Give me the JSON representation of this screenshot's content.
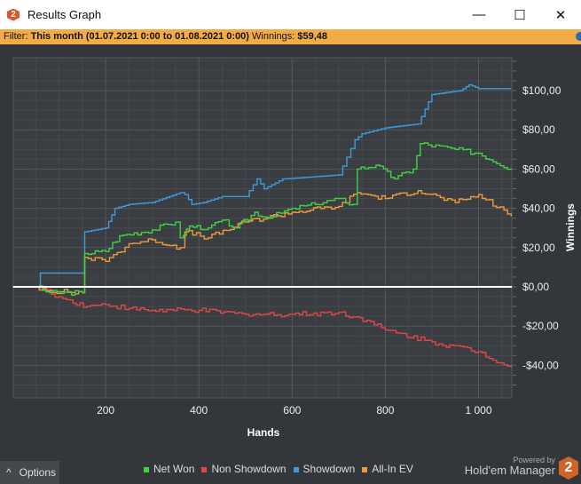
{
  "window": {
    "title": "Results Graph",
    "logo": "2",
    "minimize": "—",
    "maximize": "☐",
    "close": "✕"
  },
  "filter": {
    "label": "Filter:",
    "value": "This month (01.07.2021 0:00 to 01.08.2021 0:00)",
    "winnings_label": "Winnings:",
    "winnings_value": "$59,48"
  },
  "footer": {
    "options_label": "Options",
    "options_icon": "^",
    "powered_by": "Powered by",
    "brand": "Hold'em Manager",
    "brand_logo": "2"
  },
  "chart_data": {
    "type": "line",
    "xlabel": "Hands",
    "ylabel": "Winnings",
    "xlim": [
      0,
      1070
    ],
    "ylim": [
      -55,
      117
    ],
    "xticks": [
      200,
      400,
      600,
      800,
      1000
    ],
    "xtick_labels": [
      "200",
      "400",
      "600",
      "800",
      "1 000"
    ],
    "yticks": [
      100,
      80,
      60,
      40,
      20,
      0,
      -20,
      -40
    ],
    "ytick_labels": [
      "$100,00",
      "$80,00",
      "$60,00",
      "$40,00",
      "$20,00",
      "$0,00",
      "-$20,00",
      "-$40,00"
    ],
    "grid": true,
    "legend": "bottom",
    "series": [
      {
        "name": "Net Won",
        "color": "#3fd43f",
        "x": [
          0,
          50,
          80,
          150,
          155,
          200,
          230,
          300,
          350,
          360,
          380,
          420,
          450,
          480,
          520,
          550,
          600,
          650,
          700,
          730,
          740,
          780,
          820,
          860,
          875,
          950,
          1000,
          1070
        ],
        "y": [
          0,
          0,
          -3,
          -3,
          17,
          18,
          26,
          29,
          33,
          25,
          31,
          30,
          34,
          30,
          38,
          35,
          40,
          42,
          45,
          42,
          60,
          62,
          55,
          60,
          73,
          70,
          68,
          60
        ]
      },
      {
        "name": "Non Showdown",
        "color": "#e04848",
        "x": [
          0,
          50,
          100,
          160,
          200,
          250,
          300,
          400,
          500,
          600,
          700,
          760,
          800,
          900,
          1000,
          1070
        ],
        "y": [
          0,
          0,
          -5,
          -10,
          -9,
          -11,
          -12,
          -12,
          -14,
          -14,
          -13,
          -17,
          -22,
          -28,
          -33,
          -41
        ]
      },
      {
        "name": "Showdown",
        "color": "#3d9be0",
        "x": [
          0,
          50,
          60,
          150,
          155,
          200,
          220,
          250,
          300,
          360,
          370,
          385,
          410,
          450,
          500,
          525,
          540,
          580,
          700,
          735,
          750,
          800,
          870,
          900,
          960,
          980,
          1000,
          1070
        ],
        "y": [
          0,
          0,
          7,
          7,
          28,
          30,
          40,
          42,
          43,
          48,
          47,
          42,
          43,
          46,
          46,
          55,
          50,
          55,
          57,
          75,
          78,
          81,
          83,
          98,
          100,
          103,
          101,
          101
        ]
      },
      {
        "name": "All-In EV",
        "color": "#f09a3a",
        "x": [
          0,
          50,
          80,
          150,
          155,
          200,
          250,
          300,
          360,
          370,
          420,
          500,
          600,
          700,
          740,
          800,
          870,
          950,
          1000,
          1070
        ],
        "y": [
          0,
          0,
          -2,
          -3,
          15,
          13,
          22,
          24,
          20,
          28,
          25,
          33,
          38,
          41,
          48,
          45,
          49,
          43,
          47,
          36
        ]
      }
    ]
  }
}
